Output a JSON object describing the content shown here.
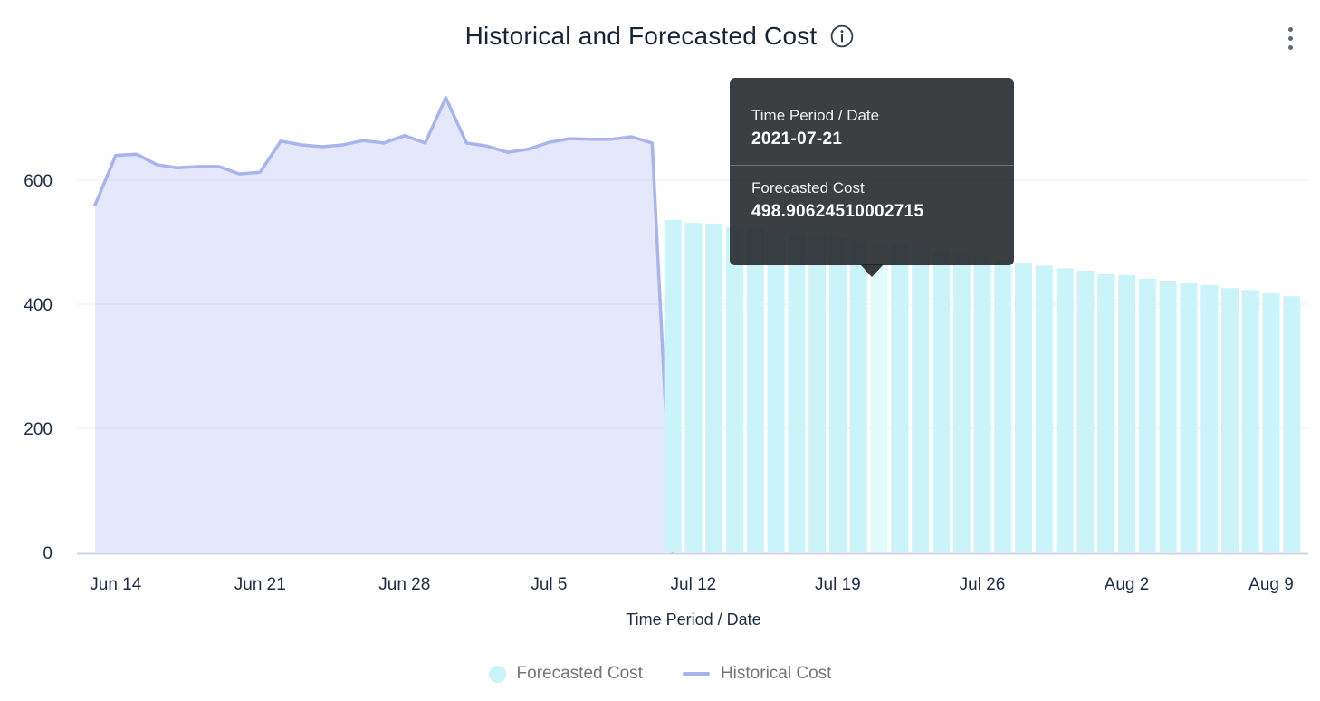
{
  "header": {
    "title": "Historical and Forecasted Cost"
  },
  "tooltip": {
    "date_label": "Time Period / Date",
    "date_value": "2021-07-21",
    "series_label": "Forecasted Cost",
    "series_value": "498.90624510002715"
  },
  "legend": {
    "items": [
      {
        "label": "Forecasted Cost",
        "marker": "circle",
        "color": "#cbf3fa"
      },
      {
        "label": "Historical Cost",
        "marker": "line",
        "color": "#a8b4ee"
      }
    ]
  },
  "chart_data": {
    "type": "mixed",
    "title": "Historical and Forecasted Cost",
    "xlabel": "Time Period / Date",
    "ylabel": "",
    "ylim": [
      0,
      760
    ],
    "y_ticks": [
      0,
      200,
      400,
      600
    ],
    "x_ticks": [
      {
        "label": "Jun 14",
        "date": "2021-06-14"
      },
      {
        "label": "Jun 21",
        "date": "2021-06-21"
      },
      {
        "label": "Jun 28",
        "date": "2021-06-28"
      },
      {
        "label": "Jul 5",
        "date": "2021-07-05"
      },
      {
        "label": "Jul 12",
        "date": "2021-07-12"
      },
      {
        "label": "Jul 19",
        "date": "2021-07-19"
      },
      {
        "label": "Jul 26",
        "date": "2021-07-26"
      },
      {
        "label": "Aug 2",
        "date": "2021-08-02"
      },
      {
        "label": "Aug 9",
        "date": "2021-08-09"
      }
    ],
    "grid": true,
    "legend_position": "bottom",
    "colors": {
      "grid": "#e9edf5",
      "axis_line": "#ccd5e2",
      "tick_text": "#1c2d47",
      "title_text": "#16243a",
      "legend_text": "#72747b",
      "tooltip_bg": "#212427"
    },
    "series": [
      {
        "name": "Historical Cost",
        "type": "area",
        "color": "#a8b4ee",
        "fill": "#a8b4ee",
        "fill_opacity": 0.3,
        "dates": [
          "2021-06-13",
          "2021-06-14",
          "2021-06-15",
          "2021-06-16",
          "2021-06-17",
          "2021-06-18",
          "2021-06-19",
          "2021-06-20",
          "2021-06-21",
          "2021-06-22",
          "2021-06-23",
          "2021-06-24",
          "2021-06-25",
          "2021-06-26",
          "2021-06-27",
          "2021-06-28",
          "2021-06-29",
          "2021-06-30",
          "2021-07-01",
          "2021-07-02",
          "2021-07-03",
          "2021-07-04",
          "2021-07-05",
          "2021-07-06",
          "2021-07-07",
          "2021-07-08",
          "2021-07-09",
          "2021-07-10",
          "2021-07-11"
        ],
        "values": [
          560,
          640,
          642,
          625,
          620,
          622,
          622,
          610,
          613,
          663,
          657,
          654,
          657,
          664,
          660,
          672,
          660,
          733,
          660,
          655,
          645,
          650,
          661,
          667,
          666,
          666,
          670,
          660,
          0
        ]
      },
      {
        "name": "Forecasted Cost",
        "type": "bar",
        "color": "#cbf3fa",
        "highlight_color": "#e4fbfd",
        "highlighted_date": "2021-07-21",
        "dates": [
          "2021-07-11",
          "2021-07-12",
          "2021-07-13",
          "2021-07-14",
          "2021-07-15",
          "2021-07-16",
          "2021-07-17",
          "2021-07-18",
          "2021-07-19",
          "2021-07-20",
          "2021-07-21",
          "2021-07-22",
          "2021-07-23",
          "2021-07-24",
          "2021-07-25",
          "2021-07-26",
          "2021-07-27",
          "2021-07-28",
          "2021-07-29",
          "2021-07-30",
          "2021-07-31",
          "2021-08-01",
          "2021-08-02",
          "2021-08-03",
          "2021-08-04",
          "2021-08-05",
          "2021-08-06",
          "2021-08-07",
          "2021-08-08",
          "2021-08-09",
          "2021-08-10"
        ],
        "values": [
          536,
          531,
          530,
          524,
          521,
          517,
          513,
          509,
          506,
          502,
          498.90624510002715,
          494,
          490,
          486,
          481,
          477,
          472,
          467,
          462,
          458,
          454,
          450,
          447,
          441,
          438,
          434,
          431,
          426,
          423,
          419,
          413
        ]
      }
    ]
  }
}
